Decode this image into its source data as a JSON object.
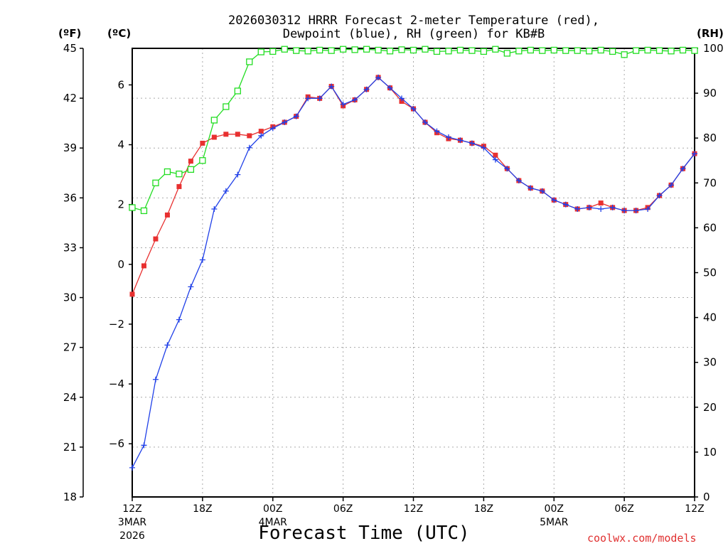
{
  "chart_data": {
    "type": "line",
    "title_line1": "2026030312 HRRR Forecast 2-meter Temperature (red),",
    "title_line2": "Dewpoint (blue), RH (green) for KB#B",
    "left_outer_unit": "(ºF)",
    "left_inner_unit": "(ºC)",
    "right_unit": "(RH)",
    "xlabel": "Forecast Time (UTC)",
    "credit": "coolwx.com/models",
    "f_ticks": [
      "18",
      "21",
      "24",
      "27",
      "30",
      "33",
      "36",
      "39",
      "42",
      "45"
    ],
    "c_ticks": [
      "−6",
      "−4",
      "−2",
      "0",
      "2",
      "4",
      "6"
    ],
    "c_tick_values": [
      -6,
      -4,
      -2,
      0,
      2,
      4,
      6
    ],
    "rh_ticks": [
      "0",
      "10",
      "20",
      "30",
      "40",
      "50",
      "60",
      "70",
      "80",
      "90",
      "100"
    ],
    "f_range": [
      18,
      45
    ],
    "rh_range": [
      0,
      100
    ],
    "x_hours_range": [
      0,
      48
    ],
    "x_ticks": [
      {
        "hour": 0,
        "label": "12Z",
        "sub1": "3MAR",
        "sub2": "2026"
      },
      {
        "hour": 6,
        "label": "18Z",
        "sub1": "",
        "sub2": ""
      },
      {
        "hour": 12,
        "label": "00Z",
        "sub1": "4MAR",
        "sub2": ""
      },
      {
        "hour": 18,
        "label": "06Z",
        "sub1": "",
        "sub2": ""
      },
      {
        "hour": 24,
        "label": "12Z",
        "sub1": "",
        "sub2": ""
      },
      {
        "hour": 30,
        "label": "18Z",
        "sub1": "",
        "sub2": ""
      },
      {
        "hour": 36,
        "label": "00Z",
        "sub1": "5MAR",
        "sub2": ""
      },
      {
        "hour": 42,
        "label": "06Z",
        "sub1": "",
        "sub2": ""
      },
      {
        "hour": 48,
        "label": "12Z",
        "sub1": "",
        "sub2": ""
      }
    ],
    "series": [
      {
        "name": "Temperature",
        "unit": "C",
        "color": "#e83030",
        "marker": "filled-square",
        "values": [
          -1.0,
          -0.05,
          0.85,
          1.65,
          2.6,
          3.45,
          4.05,
          4.25,
          4.35,
          4.35,
          4.3,
          4.45,
          4.6,
          4.75,
          4.95,
          5.6,
          5.55,
          5.95,
          5.3,
          5.5,
          5.85,
          6.25,
          5.9,
          5.45,
          5.2,
          4.75,
          4.4,
          4.2,
          4.15,
          4.05,
          3.95,
          3.65,
          3.2,
          2.8,
          2.55,
          2.45,
          2.15,
          2.0,
          1.85,
          1.9,
          2.05,
          1.9,
          1.8,
          1.8,
          1.9,
          2.3,
          2.65,
          3.2,
          3.7
        ]
      },
      {
        "name": "Dewpoint",
        "unit": "C",
        "color": "#2040e8",
        "marker": "plus",
        "values": [
          -6.8,
          -6.05,
          -3.85,
          -2.7,
          -1.85,
          -0.75,
          0.15,
          1.85,
          2.45,
          3.0,
          3.9,
          4.3,
          4.55,
          4.75,
          4.95,
          5.55,
          5.55,
          5.95,
          5.35,
          5.5,
          5.85,
          6.25,
          5.9,
          5.55,
          5.2,
          4.75,
          4.45,
          4.25,
          4.15,
          4.05,
          3.9,
          3.5,
          3.2,
          2.8,
          2.55,
          2.45,
          2.15,
          2.0,
          1.85,
          1.9,
          1.85,
          1.9,
          1.8,
          1.8,
          1.85,
          2.3,
          2.65,
          3.2,
          3.7
        ]
      },
      {
        "name": "RH",
        "unit": "%",
        "color": "#22dd22",
        "marker": "open-square",
        "values": [
          64.5,
          63.8,
          70,
          72.5,
          72,
          73,
          75,
          84,
          87,
          90.5,
          97,
          99.2,
          99.3,
          99.8,
          99.5,
          99.4,
          99.6,
          99.5,
          99.8,
          99.7,
          99.8,
          99.6,
          99.4,
          99.7,
          99.6,
          99.8,
          99.3,
          99.4,
          99.6,
          99.5,
          99.3,
          99.8,
          98.9,
          99.4,
          99.6,
          99.5,
          99.6,
          99.5,
          99.5,
          99.4,
          99.6,
          99.3,
          98.6,
          99.5,
          99.6,
          99.5,
          99.4,
          99.6,
          99.5
        ]
      }
    ]
  }
}
